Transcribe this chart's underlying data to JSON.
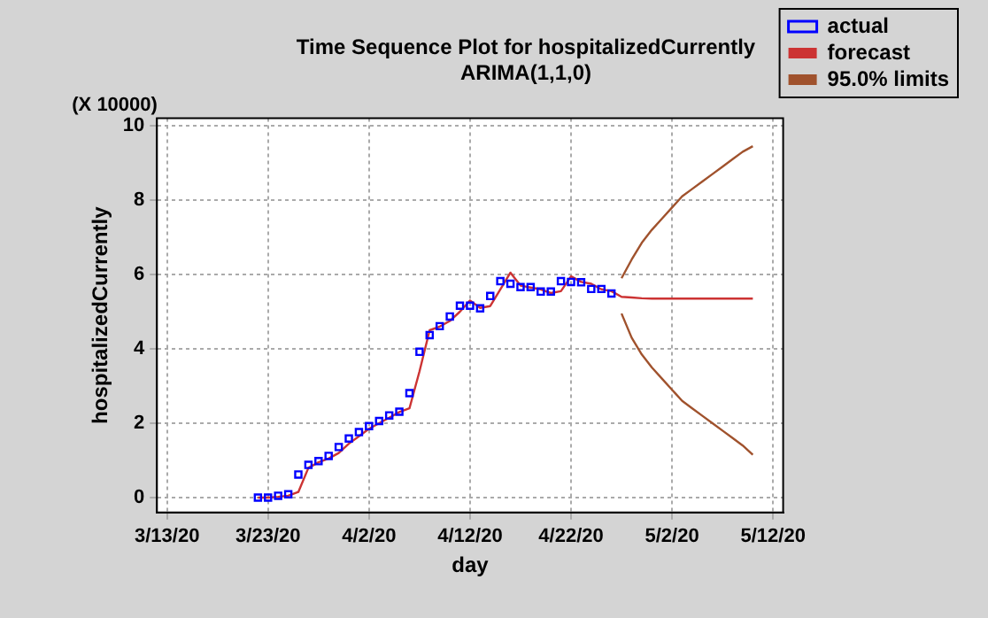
{
  "chart_data": {
    "type": "line",
    "title": "Time Sequence Plot for hospitalizedCurrently",
    "subtitle": "ARIMA(1,1,0)",
    "xlabel": "day",
    "ylabel": "hospitalizedCurrently",
    "annotations": [
      "(X 10000)"
    ],
    "xlim": [
      "--03-12",
      "--05-13"
    ],
    "xticks": [
      {
        "value": "--03-13",
        "label": "3/13/20"
      },
      {
        "value": "--03-23",
        "label": "3/23/20"
      },
      {
        "value": "--04-02",
        "label": "4/2/20"
      },
      {
        "value": "--04-12",
        "label": "4/12/20"
      },
      {
        "value": "--04-22",
        "label": "4/22/20"
      },
      {
        "value": "--05-02",
        "label": "5/2/20"
      },
      {
        "value": "--05-12",
        "label": "5/12/20"
      }
    ],
    "ylim": [
      -0.4,
      10.2
    ],
    "yticks": [
      0,
      2,
      4,
      6,
      8,
      10
    ],
    "grid": true,
    "legend": "right",
    "series": [
      {
        "name": "actual",
        "type": "scatter",
        "marker": "square",
        "color": "#0000ff",
        "x": [
          "--03-22",
          "--03-23",
          "--03-24",
          "--03-25",
          "--03-26",
          "--03-27",
          "--03-28",
          "--03-29",
          "--03-30",
          "--03-31",
          "--04-01",
          "--04-02",
          "--04-03",
          "--04-04",
          "--04-05",
          "--04-06",
          "--04-07",
          "--04-08",
          "--04-09",
          "--04-10",
          "--04-11",
          "--04-12",
          "--04-13",
          "--04-14",
          "--04-15",
          "--04-16",
          "--04-17",
          "--04-18",
          "--04-19",
          "--04-20",
          "--04-21",
          "--04-22",
          "--04-23",
          "--04-24",
          "--04-25",
          "--04-26"
        ],
        "values": [
          0.0,
          0.0,
          0.05,
          0.09,
          0.62,
          0.88,
          0.98,
          1.12,
          1.36,
          1.59,
          1.76,
          1.92,
          2.06,
          2.21,
          2.31,
          2.81,
          3.92,
          4.37,
          4.61,
          4.87,
          5.16,
          5.16,
          5.09,
          5.42,
          5.82,
          5.75,
          5.66,
          5.66,
          5.54,
          5.54,
          5.82,
          5.8,
          5.79,
          5.61,
          5.61,
          5.49
        ]
      },
      {
        "name": "forecast",
        "type": "line",
        "marker": "none",
        "color": "#cc3333",
        "x": [
          "--03-22",
          "--03-23",
          "--03-24",
          "--03-25",
          "--03-26",
          "--03-27",
          "--03-28",
          "--03-29",
          "--03-30",
          "--03-31",
          "--04-01",
          "--04-02",
          "--04-03",
          "--04-04",
          "--04-05",
          "--04-06",
          "--04-07",
          "--04-08",
          "--04-09",
          "--04-10",
          "--04-11",
          "--04-12",
          "--04-13",
          "--04-14",
          "--04-15",
          "--04-16",
          "--04-17",
          "--04-18",
          "--04-19",
          "--04-20",
          "--04-21",
          "--04-22",
          "--04-23",
          "--04-24",
          "--04-25",
          "--04-26",
          "--04-27",
          "--04-28",
          "--04-29",
          "--04-30",
          "--05-02",
          "--05-04",
          "--05-06",
          "--05-08",
          "--05-10"
        ],
        "values": [
          0.0,
          0.0,
          0.02,
          0.05,
          0.15,
          0.8,
          0.95,
          1.05,
          1.2,
          1.45,
          1.65,
          1.85,
          2.0,
          2.15,
          2.3,
          2.4,
          3.4,
          4.5,
          4.6,
          4.75,
          5.0,
          5.3,
          5.1,
          5.15,
          5.6,
          6.05,
          5.7,
          5.65,
          5.6,
          5.5,
          5.55,
          5.95,
          5.8,
          5.75,
          5.6,
          5.55,
          5.4,
          5.38,
          5.36,
          5.35,
          5.35,
          5.35,
          5.35,
          5.35,
          5.35
        ]
      },
      {
        "name": "95.0% limits",
        "type": "line",
        "marker": "none",
        "color": "#a0522d",
        "x": [
          "--04-27",
          "--04-28",
          "--04-29",
          "--04-30",
          "--05-01",
          "--05-02",
          "--05-03",
          "--05-04",
          "--05-05",
          "--05-06",
          "--05-07",
          "--05-08",
          "--05-09",
          "--05-10"
        ],
        "values": [
          5.9,
          6.4,
          6.85,
          7.2,
          7.5,
          7.8,
          8.1,
          8.3,
          8.5,
          8.7,
          8.9,
          9.1,
          9.3,
          9.45
        ]
      },
      {
        "type": "line",
        "marker": "none",
        "color": "#a0522d",
        "x": [
          "--04-27",
          "--04-28",
          "--04-29",
          "--04-30",
          "--05-01",
          "--05-02",
          "--05-03",
          "--05-04",
          "--05-05",
          "--05-06",
          "--05-07",
          "--05-08",
          "--05-09",
          "--05-10"
        ],
        "values": [
          4.95,
          4.3,
          3.85,
          3.5,
          3.2,
          2.9,
          2.6,
          2.4,
          2.2,
          2.0,
          1.8,
          1.6,
          1.4,
          1.15
        ]
      }
    ]
  }
}
